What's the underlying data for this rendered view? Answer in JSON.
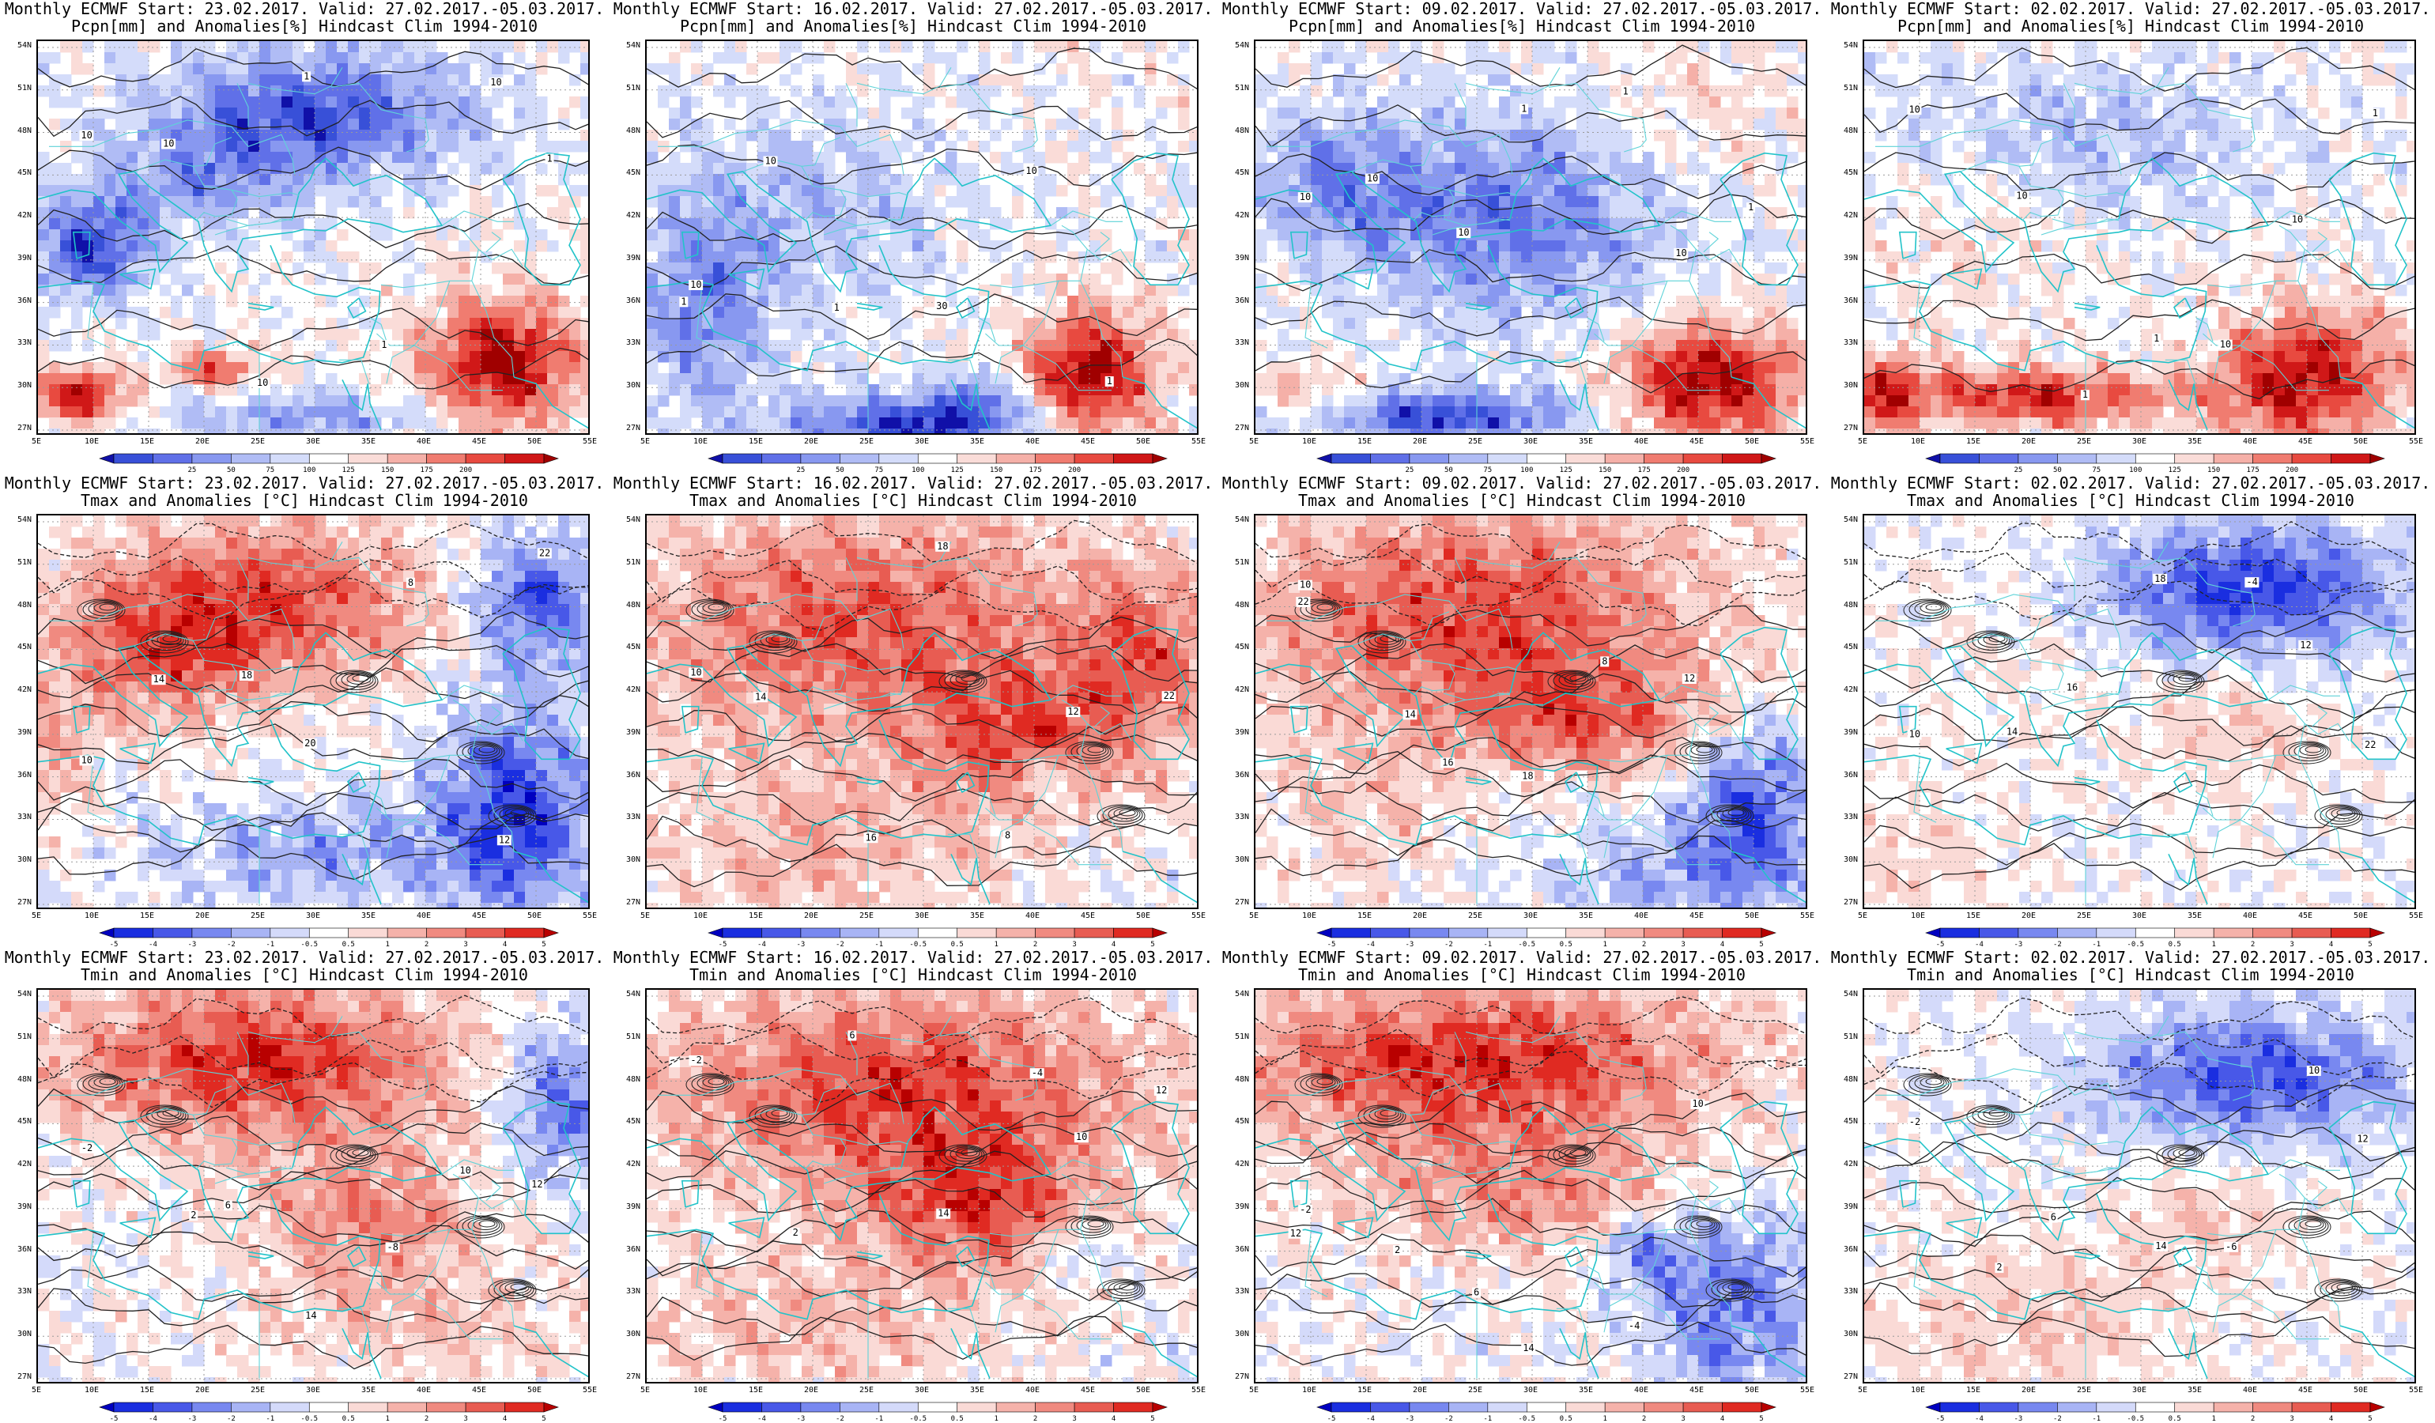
{
  "rows": [
    {
      "id": "pcpn",
      "title_line2": "Pcpn[mm] and Anomalies[%] Hindcast Clim 1994-2010",
      "colorbar": {
        "labels": [
          "25",
          "50",
          "75",
          "100",
          "125",
          "150",
          "175",
          "200"
        ],
        "colors": [
          "#1010a8",
          "#3850d8",
          "#6070e8",
          "#8898f0",
          "#b0bcf5",
          "#d4dcfa",
          "#ffffff",
          "#fadcd8",
          "#f5b0a8",
          "#f07c70",
          "#e84a40",
          "#d01818",
          "#a00000"
        ]
      },
      "panels": [
        {
          "start": "23.02.2017",
          "contour_labels": [
            "10",
            "10",
            "10",
            "1",
            "1",
            "10",
            "1"
          ],
          "pattern": "p1"
        },
        {
          "start": "16.02.2017",
          "contour_labels": [
            "10",
            "10",
            "1",
            "30",
            "10",
            "1",
            "1"
          ],
          "pattern": "p2"
        },
        {
          "start": "09.02.2017",
          "contour_labels": [
            "10",
            "10",
            "10",
            "1",
            "1",
            "10",
            "1"
          ],
          "pattern": "p3"
        },
        {
          "start": "02.02.2017",
          "contour_labels": [
            "10",
            "10",
            "1",
            "1",
            "10",
            "10",
            "1"
          ],
          "pattern": "p4"
        }
      ]
    },
    {
      "id": "tmax",
      "title_line2": "Tmax and Anomalies [°C] Hindcast Clim 1994-2010",
      "colorbar": {
        "labels": [
          "-5",
          "-4",
          "-3",
          "-2",
          "-1",
          "-0.5",
          "0.5",
          "1",
          "2",
          "3",
          "4",
          "5"
        ],
        "colors": [
          "#0000c0",
          "#1a2ee0",
          "#4858e8",
          "#7888f0",
          "#a8b4f5",
          "#d4dafa",
          "#ffffff",
          "#fadad6",
          "#f5b2aa",
          "#f08a80",
          "#e85c52",
          "#e02a22",
          "#b80000"
        ]
      },
      "panels": [
        {
          "start": "23.02.2017",
          "contour_labels": [
            "10",
            "14",
            "18",
            "20",
            "8",
            "12",
            "22"
          ],
          "pattern": "t1"
        },
        {
          "start": "16.02.2017",
          "contour_labels": [
            "10",
            "14",
            "16",
            "18",
            "8",
            "12",
            "22"
          ],
          "pattern": "t2"
        },
        {
          "start": "09.02.2017",
          "contour_labels": [
            "10",
            "14",
            "16",
            "18",
            "8",
            "12",
            "22"
          ],
          "pattern": "t3"
        },
        {
          "start": "02.02.2017",
          "contour_labels": [
            "10",
            "14",
            "16",
            "18",
            "-4",
            "12",
            "22"
          ],
          "pattern": "t4"
        }
      ]
    },
    {
      "id": "tmin",
      "title_line2": "Tmin and Anomalies [°C] Hindcast Clim 1994-2010",
      "colorbar": {
        "labels": [
          "-5",
          "-4",
          "-3",
          "-2",
          "-1",
          "-0.5",
          "0.5",
          "1",
          "2",
          "3",
          "4",
          "5"
        ],
        "colors": [
          "#0000c0",
          "#1a2ee0",
          "#4858e8",
          "#7888f0",
          "#a8b4f5",
          "#d4dafa",
          "#ffffff",
          "#fadad6",
          "#f5b2aa",
          "#f08a80",
          "#e85c52",
          "#e02a22",
          "#b80000"
        ]
      },
      "panels": [
        {
          "start": "23.02.2017",
          "contour_labels": [
            "-2",
            "2",
            "6",
            "14",
            "-8",
            "10",
            "12"
          ],
          "pattern": "n1"
        },
        {
          "start": "16.02.2017",
          "contour_labels": [
            "-2",
            "2",
            "6",
            "14",
            "-4",
            "10",
            "12"
          ],
          "pattern": "n2"
        },
        {
          "start": "09.02.2017",
          "contour_labels": [
            "-2",
            "2",
            "6",
            "14",
            "-4",
            "10",
            "12"
          ],
          "pattern": "n3"
        },
        {
          "start": "02.02.2017",
          "contour_labels": [
            "-2",
            "2",
            "6",
            "14",
            "-6",
            "10",
            "12"
          ],
          "pattern": "n4"
        }
      ]
    }
  ],
  "common": {
    "title_prefix": "Monthly ECMWF Start:",
    "valid_text": "Valid: 27.02.2017.-05.03.2017.",
    "y_ticks": [
      "54N",
      "51N",
      "48N",
      "45N",
      "42N",
      "39N",
      "36N",
      "33N",
      "30N",
      "27N"
    ],
    "x_ticks": [
      "5E",
      "10E",
      "15E",
      "20E",
      "25E",
      "30E",
      "35E",
      "40E",
      "45E",
      "50E",
      "55E"
    ]
  }
}
